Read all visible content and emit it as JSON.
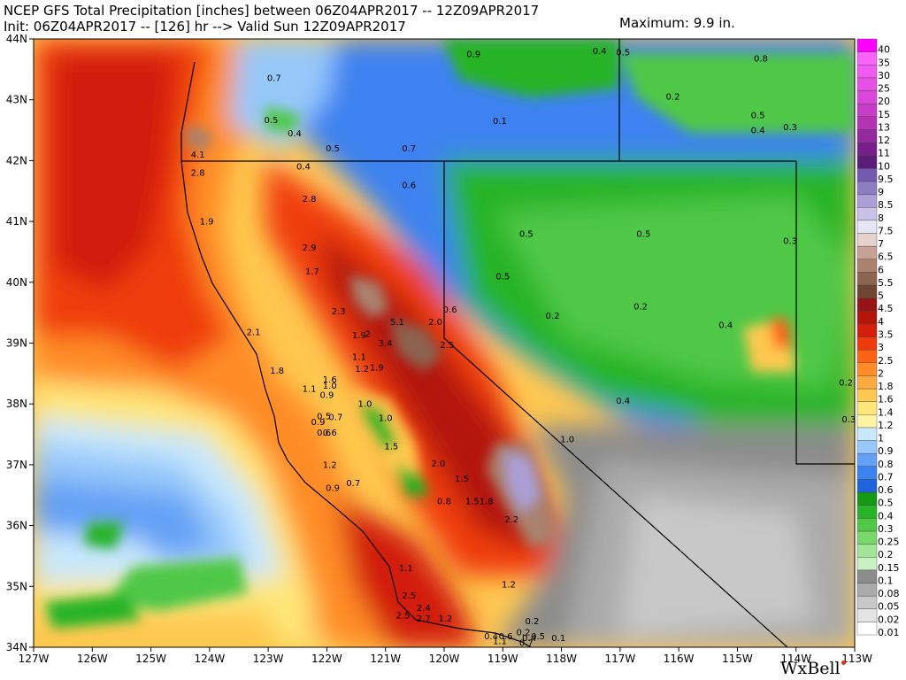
{
  "header": {
    "line1": "NCEP GFS Total Precipitation [inches] between 06Z04APR2017 -- 12Z09APR2017",
    "line2": "Init: 06Z04APR2017 -- [126] hr --> Valid Sun 12Z09APR2017",
    "maximum": "Maximum: 9.9 in."
  },
  "brand": "WxBell",
  "chart_data": {
    "type": "heatmap",
    "title": "NCEP GFS Total Precipitation [inches] between 06Z04APR2017 -- 12Z09APR2017",
    "subtitle": "Init: 06Z04APR2017 -- [126] hr --> Valid Sun 12Z09APR2017",
    "maximum_in": 9.9,
    "units": "inches",
    "xlim": [
      -127,
      -113
    ],
    "ylim": [
      34,
      44
    ],
    "x_ticks": [
      {
        "value": -127,
        "label": "127W"
      },
      {
        "value": -126,
        "label": "126W"
      },
      {
        "value": -125,
        "label": "125W"
      },
      {
        "value": -124,
        "label": "124W"
      },
      {
        "value": -123,
        "label": "123W"
      },
      {
        "value": -122,
        "label": "122W"
      },
      {
        "value": -121,
        "label": "121W"
      },
      {
        "value": -120,
        "label": "120W"
      },
      {
        "value": -119,
        "label": "119W"
      },
      {
        "value": -118,
        "label": "118W"
      },
      {
        "value": -117,
        "label": "117W"
      },
      {
        "value": -116,
        "label": "116W"
      },
      {
        "value": -115,
        "label": "115W"
      },
      {
        "value": -114,
        "label": "114W"
      },
      {
        "value": -113,
        "label": "113W"
      }
    ],
    "y_ticks": [
      {
        "value": 34,
        "label": "34N"
      },
      {
        "value": 35,
        "label": "35N"
      },
      {
        "value": 36,
        "label": "36N"
      },
      {
        "value": 37,
        "label": "37N"
      },
      {
        "value": 38,
        "label": "38N"
      },
      {
        "value": 39,
        "label": "39N"
      },
      {
        "value": 40,
        "label": "40N"
      },
      {
        "value": 41,
        "label": "41N"
      },
      {
        "value": 42,
        "label": "42N"
      },
      {
        "value": 43,
        "label": "43N"
      },
      {
        "value": 44,
        "label": "44N"
      }
    ],
    "legend": {
      "placement": "right",
      "levels": [
        {
          "label": "0.01",
          "color": "#ffffff"
        },
        {
          "label": "0.02",
          "color": "#e4e4e4"
        },
        {
          "label": "0.05",
          "color": "#c8c8c8"
        },
        {
          "label": "0.08",
          "color": "#aaaaaa"
        },
        {
          "label": "0.1",
          "color": "#8c8c8c"
        },
        {
          "label": "0.15",
          "color": "#c8f0c0"
        },
        {
          "label": "0.2",
          "color": "#a0e696"
        },
        {
          "label": "0.25",
          "color": "#78d86a"
        },
        {
          "label": "0.3",
          "color": "#50c846"
        },
        {
          "label": "0.4",
          "color": "#28b428"
        },
        {
          "label": "0.5",
          "color": "#149a14"
        },
        {
          "label": "0.6",
          "color": "#1e64dc"
        },
        {
          "label": "0.7",
          "color": "#3c82f0"
        },
        {
          "label": "0.8",
          "color": "#64a0f5"
        },
        {
          "label": "0.9",
          "color": "#96c8fa"
        },
        {
          "label": "1",
          "color": "#c8e8fc"
        },
        {
          "label": "1.2",
          "color": "#fff5a0"
        },
        {
          "label": "1.4",
          "color": "#ffe678"
        },
        {
          "label": "1.6",
          "color": "#ffc850"
        },
        {
          "label": "1.8",
          "color": "#ffaa3c"
        },
        {
          "label": "2",
          "color": "#ff8c28"
        },
        {
          "label": "2.5",
          "color": "#ff6414"
        },
        {
          "label": "3",
          "color": "#f03c0a"
        },
        {
          "label": "3.5",
          "color": "#d21e0a"
        },
        {
          "label": "4",
          "color": "#b4140a"
        },
        {
          "label": "4.5",
          "color": "#961414"
        },
        {
          "label": "5",
          "color": "#6e4632"
        },
        {
          "label": "5.5",
          "color": "#8c6450"
        },
        {
          "label": "6",
          "color": "#aa826e"
        },
        {
          "label": "6.5",
          "color": "#c8a096"
        },
        {
          "label": "7",
          "color": "#e6d2cd"
        },
        {
          "label": "7.5",
          "color": "#e6e6f5"
        },
        {
          "label": "8",
          "color": "#c8c3e6"
        },
        {
          "label": "8.5",
          "color": "#aaa0d7"
        },
        {
          "label": "9",
          "color": "#8c7dc3"
        },
        {
          "label": "9.5",
          "color": "#735aaf"
        },
        {
          "label": "10",
          "color": "#5a1e78"
        },
        {
          "label": "11",
          "color": "#781e8c"
        },
        {
          "label": "12",
          "color": "#9628a0"
        },
        {
          "label": "13",
          "color": "#b432b4"
        },
        {
          "label": "15",
          "color": "#c83cc8"
        },
        {
          "label": "20",
          "color": "#dc46dc"
        },
        {
          "label": "25",
          "color": "#e650e6"
        },
        {
          "label": "30",
          "color": "#f05af0"
        },
        {
          "label": "35",
          "color": "#fa64fa"
        },
        {
          "label": "40",
          "color": "#ff00ff"
        }
      ]
    },
    "point_labels": [
      {
        "lon": -124.2,
        "lat": 42.05,
        "text": "4.1"
      },
      {
        "lon": -124.2,
        "lat": 41.75,
        "text": "2.8"
      },
      {
        "lon": -124.05,
        "lat": 40.95,
        "text": "1.9"
      },
      {
        "lon": -122.3,
        "lat": 41.32,
        "text": "2.8"
      },
      {
        "lon": -122.3,
        "lat": 40.52,
        "text": "2.9"
      },
      {
        "lon": -122.25,
        "lat": 40.13,
        "text": "1.7"
      },
      {
        "lon": -121.8,
        "lat": 39.47,
        "text": "2.3"
      },
      {
        "lon": -121.45,
        "lat": 39.08,
        "text": "1.9"
      },
      {
        "lon": -121.3,
        "lat": 39.1,
        "text": "2"
      },
      {
        "lon": -120.8,
        "lat": 39.3,
        "text": "5.1"
      },
      {
        "lon": -120.15,
        "lat": 39.3,
        "text": "2.0"
      },
      {
        "lon": -121.0,
        "lat": 38.95,
        "text": "3.4"
      },
      {
        "lon": -119.95,
        "lat": 38.92,
        "text": "2.5"
      },
      {
        "lon": -123.25,
        "lat": 39.13,
        "text": "2.1"
      },
      {
        "lon": -122.85,
        "lat": 38.5,
        "text": "1.8"
      },
      {
        "lon": -121.45,
        "lat": 38.72,
        "text": "1.1"
      },
      {
        "lon": -121.4,
        "lat": 38.53,
        "text": "1.2"
      },
      {
        "lon": -121.15,
        "lat": 38.55,
        "text": "1.9"
      },
      {
        "lon": -121.95,
        "lat": 38.35,
        "text": "1.6"
      },
      {
        "lon": -121.95,
        "lat": 38.25,
        "text": "1.0"
      },
      {
        "lon": -122.3,
        "lat": 38.2,
        "text": "1.1"
      },
      {
        "lon": -122.0,
        "lat": 38.1,
        "text": "0.9"
      },
      {
        "lon": -121.35,
        "lat": 37.95,
        "text": "1.0"
      },
      {
        "lon": -121.85,
        "lat": 37.73,
        "text": "0.7"
      },
      {
        "lon": -122.05,
        "lat": 37.75,
        "text": "0.5"
      },
      {
        "lon": -122.15,
        "lat": 37.65,
        "text": "0.9"
      },
      {
        "lon": -121.95,
        "lat": 37.48,
        "text": "0.6"
      },
      {
        "lon": -122.05,
        "lat": 37.48,
        "text": "0.6"
      },
      {
        "lon": -121.0,
        "lat": 37.72,
        "text": "1.0"
      },
      {
        "lon": -120.9,
        "lat": 37.25,
        "text": "1.5"
      },
      {
        "lon": -120.1,
        "lat": 36.97,
        "text": "2.0"
      },
      {
        "lon": -119.7,
        "lat": 36.72,
        "text": "1.5"
      },
      {
        "lon": -121.95,
        "lat": 36.95,
        "text": "1.2"
      },
      {
        "lon": -121.55,
        "lat": 36.65,
        "text": "0.7"
      },
      {
        "lon": -121.9,
        "lat": 36.57,
        "text": "0.9"
      },
      {
        "lon": -120.0,
        "lat": 36.35,
        "text": "0.8"
      },
      {
        "lon": -119.4,
        "lat": 36.35,
        "text": "1.51.8"
      },
      {
        "lon": -118.85,
        "lat": 36.05,
        "text": "2.2"
      },
      {
        "lon": -117.9,
        "lat": 37.37,
        "text": "1.0"
      },
      {
        "lon": -120.65,
        "lat": 35.25,
        "text": "1.1"
      },
      {
        "lon": -120.6,
        "lat": 34.8,
        "text": "2.5"
      },
      {
        "lon": -120.35,
        "lat": 34.6,
        "text": "2.4"
      },
      {
        "lon": -120.7,
        "lat": 34.47,
        "text": "2.5"
      },
      {
        "lon": -120.35,
        "lat": 34.42,
        "text": "2.7"
      },
      {
        "lon": -118.9,
        "lat": 34.98,
        "text": "1.2"
      },
      {
        "lon": -119.98,
        "lat": 34.42,
        "text": "1.2"
      },
      {
        "lon": -118.5,
        "lat": 34.38,
        "text": "0.2"
      },
      {
        "lon": -118.65,
        "lat": 34.2,
        "text": "0.2"
      },
      {
        "lon": -119.2,
        "lat": 34.13,
        "text": "0.4"
      },
      {
        "lon": -118.95,
        "lat": 34.13,
        "text": "0.6"
      },
      {
        "lon": -118.55,
        "lat": 34.1,
        "text": "0.4"
      },
      {
        "lon": -118.4,
        "lat": 34.13,
        "text": "0.5"
      },
      {
        "lon": -119.05,
        "lat": 34.05,
        "text": "1.1"
      },
      {
        "lon": -118.6,
        "lat": 34.02,
        "text": "0.7"
      },
      {
        "lon": -118.05,
        "lat": 34.1,
        "text": "0.1"
      },
      {
        "lon": -122.9,
        "lat": 43.31,
        "text": "0.7"
      },
      {
        "lon": -122.95,
        "lat": 42.62,
        "text": "0.5"
      },
      {
        "lon": -122.55,
        "lat": 42.4,
        "text": "0.4"
      },
      {
        "lon": -121.9,
        "lat": 42.15,
        "text": "0.5"
      },
      {
        "lon": -120.6,
        "lat": 42.15,
        "text": "0.7"
      },
      {
        "lon": -122.4,
        "lat": 41.85,
        "text": "0.4"
      },
      {
        "lon": -120.6,
        "lat": 41.55,
        "text": "0.6"
      },
      {
        "lon": -119.5,
        "lat": 43.7,
        "text": "0.9"
      },
      {
        "lon": -119.05,
        "lat": 42.6,
        "text": "0.1"
      },
      {
        "lon": -117.35,
        "lat": 43.75,
        "text": "0.4"
      },
      {
        "lon": -116.95,
        "lat": 43.73,
        "text": "0.5"
      },
      {
        "lon": -116.1,
        "lat": 43.0,
        "text": "0.2"
      },
      {
        "lon": -114.6,
        "lat": 43.63,
        "text": "0.8"
      },
      {
        "lon": -114.65,
        "lat": 42.7,
        "text": "0.5"
      },
      {
        "lon": -114.65,
        "lat": 42.45,
        "text": "0.4"
      },
      {
        "lon": -114.1,
        "lat": 42.5,
        "text": "0.3"
      },
      {
        "lon": -118.6,
        "lat": 40.75,
        "text": "0.5"
      },
      {
        "lon": -116.6,
        "lat": 40.75,
        "text": "0.5"
      },
      {
        "lon": -114.1,
        "lat": 40.63,
        "text": "0.3"
      },
      {
        "lon": -119.0,
        "lat": 40.05,
        "text": "0.5"
      },
      {
        "lon": -116.65,
        "lat": 39.55,
        "text": "0.2"
      },
      {
        "lon": -118.15,
        "lat": 39.4,
        "text": "0.2"
      },
      {
        "lon": -119.9,
        "lat": 39.5,
        "text": "0.6"
      },
      {
        "lon": -115.2,
        "lat": 39.25,
        "text": "0.4"
      },
      {
        "lon": -113.15,
        "lat": 38.3,
        "text": "0.2"
      },
      {
        "lon": -116.95,
        "lat": 38.0,
        "text": "0.4"
      },
      {
        "lon": -113.1,
        "lat": 37.7,
        "text": "0.3"
      }
    ]
  }
}
